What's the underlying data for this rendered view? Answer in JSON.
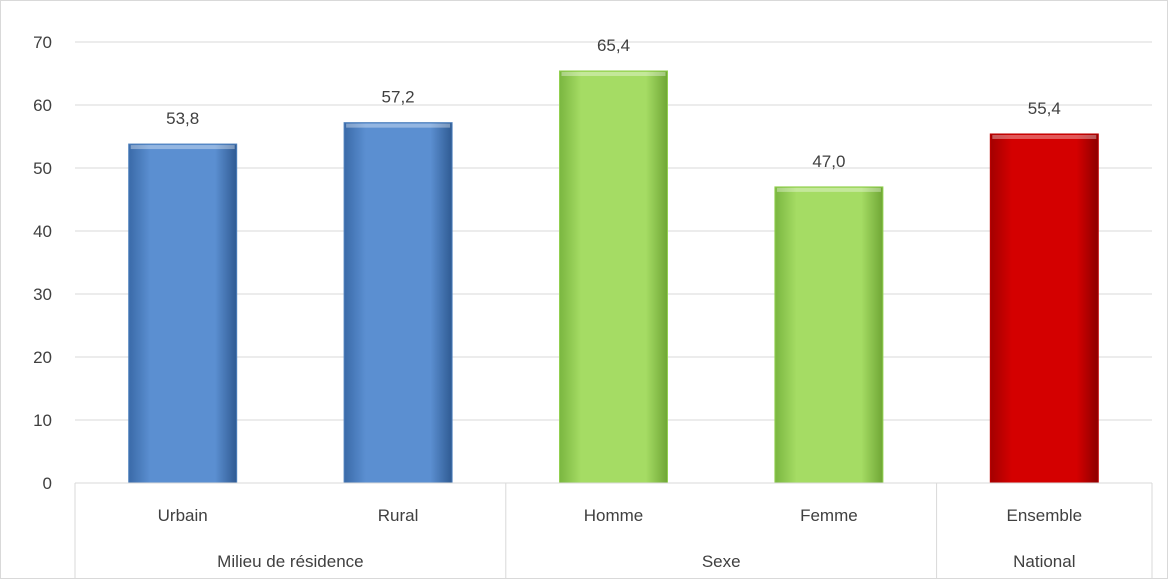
{
  "chart_data": {
    "type": "bar",
    "title": "",
    "xlabel": "",
    "ylabel": "",
    "ylim": [
      0,
      70
    ],
    "yticks": [
      "0",
      "10",
      "20",
      "30",
      "40",
      "50",
      "60",
      "70"
    ],
    "grid": true,
    "legend": "none",
    "categories": [
      "Urbain",
      "Rural",
      "Homme",
      "Femme",
      "Ensemble"
    ],
    "values": [
      53.8,
      57.2,
      65.4,
      47.0,
      55.4
    ],
    "value_labels": [
      "53,8",
      "57,2",
      "65,4",
      "47,0",
      "55,4"
    ],
    "bar_colors": [
      "#4f81bd",
      "#4f81bd",
      "#92d050",
      "#92d050",
      "#c00000"
    ],
    "groups": [
      {
        "label": "Milieu de résidence",
        "categories": [
          "Urbain",
          "Rural"
        ]
      },
      {
        "label": "Sexe",
        "categories": [
          "Homme",
          "Femme"
        ]
      },
      {
        "label": "National",
        "categories": [
          "Ensemble"
        ]
      }
    ]
  }
}
